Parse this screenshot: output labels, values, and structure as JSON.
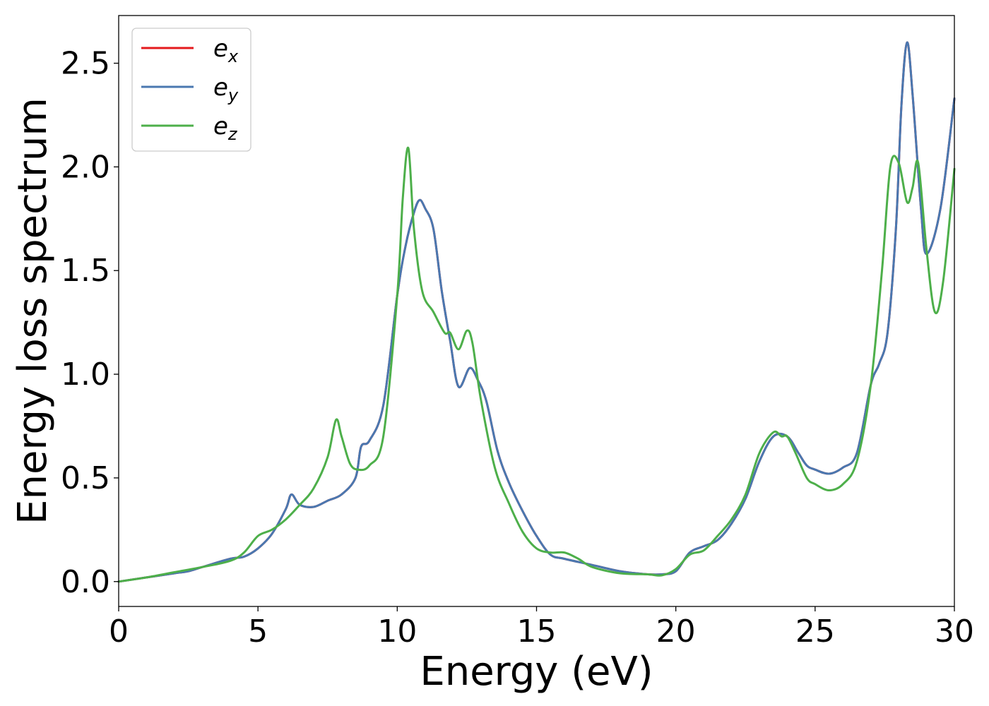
{
  "chart_data": {
    "type": "line",
    "title": "",
    "xlabel": "Energy (eV)",
    "ylabel": "Energy loss spectrum",
    "xlim": [
      0,
      30
    ],
    "ylim": [
      -0.12,
      2.73
    ],
    "xticks": [
      0,
      5,
      10,
      15,
      20,
      25,
      30
    ],
    "xtick_labels": [
      "0",
      "5",
      "10",
      "15",
      "20",
      "25",
      "30"
    ],
    "yticks": [
      0.0,
      0.5,
      1.0,
      1.5,
      2.0,
      2.5
    ],
    "ytick_labels": [
      "0.0",
      "0.5",
      "1.0",
      "1.5",
      "2.0",
      "2.5"
    ],
    "grid": false,
    "legend_position": "top-left",
    "series": [
      {
        "name": "e_x",
        "label_base": "e",
        "label_sub": "x",
        "color": "#e41a1c",
        "points": [
          [
            0,
            0
          ],
          [
            1,
            0.02
          ],
          [
            2,
            0.04
          ],
          [
            2.5,
            0.05
          ],
          [
            3,
            0.07
          ],
          [
            4,
            0.11
          ],
          [
            4.5,
            0.12
          ],
          [
            5,
            0.16
          ],
          [
            5.5,
            0.23
          ],
          [
            6,
            0.35
          ],
          [
            6.2,
            0.42
          ],
          [
            6.5,
            0.37
          ],
          [
            7,
            0.36
          ],
          [
            7.5,
            0.39
          ],
          [
            8,
            0.42
          ],
          [
            8.5,
            0.5
          ],
          [
            8.7,
            0.65
          ],
          [
            9,
            0.68
          ],
          [
            9.5,
            0.85
          ],
          [
            10,
            1.38
          ],
          [
            10.3,
            1.62
          ],
          [
            10.6,
            1.78
          ],
          [
            10.8,
            1.84
          ],
          [
            11,
            1.8
          ],
          [
            11.3,
            1.7
          ],
          [
            11.6,
            1.4
          ],
          [
            11.9,
            1.16
          ],
          [
            12.2,
            0.94
          ],
          [
            12.6,
            1.03
          ],
          [
            12.9,
            0.97
          ],
          [
            13.2,
            0.87
          ],
          [
            13.6,
            0.63
          ],
          [
            14,
            0.48
          ],
          [
            14.5,
            0.34
          ],
          [
            15,
            0.22
          ],
          [
            15.5,
            0.13
          ],
          [
            16,
            0.11
          ],
          [
            17,
            0.08
          ],
          [
            18,
            0.05
          ],
          [
            19,
            0.035
          ],
          [
            19.5,
            0.035
          ],
          [
            20,
            0.05
          ],
          [
            20.5,
            0.14
          ],
          [
            21,
            0.17
          ],
          [
            21.5,
            0.2
          ],
          [
            22,
            0.28
          ],
          [
            22.5,
            0.4
          ],
          [
            23,
            0.58
          ],
          [
            23.5,
            0.7
          ],
          [
            24,
            0.7
          ],
          [
            24.4,
            0.62
          ],
          [
            24.7,
            0.56
          ],
          [
            25,
            0.54
          ],
          [
            25.5,
            0.52
          ],
          [
            26,
            0.55
          ],
          [
            26.5,
            0.62
          ],
          [
            27,
            0.95
          ],
          [
            27.3,
            1.05
          ],
          [
            27.6,
            1.2
          ],
          [
            27.9,
            1.7
          ],
          [
            28.1,
            2.3
          ],
          [
            28.3,
            2.6
          ],
          [
            28.5,
            2.35
          ],
          [
            28.8,
            1.8
          ],
          [
            29,
            1.58
          ],
          [
            29.5,
            1.8
          ],
          [
            30,
            2.33
          ]
        ]
      },
      {
        "name": "e_y",
        "label_base": "e",
        "label_sub": "y",
        "color": "#4a78b0",
        "points": [
          [
            0,
            0
          ],
          [
            1,
            0.02
          ],
          [
            2,
            0.04
          ],
          [
            2.5,
            0.05
          ],
          [
            3,
            0.07
          ],
          [
            4,
            0.11
          ],
          [
            4.5,
            0.12
          ],
          [
            5,
            0.16
          ],
          [
            5.5,
            0.23
          ],
          [
            6,
            0.35
          ],
          [
            6.2,
            0.42
          ],
          [
            6.5,
            0.37
          ],
          [
            7,
            0.36
          ],
          [
            7.5,
            0.39
          ],
          [
            8,
            0.42
          ],
          [
            8.5,
            0.5
          ],
          [
            8.7,
            0.65
          ],
          [
            9,
            0.68
          ],
          [
            9.5,
            0.85
          ],
          [
            10,
            1.38
          ],
          [
            10.3,
            1.62
          ],
          [
            10.6,
            1.78
          ],
          [
            10.8,
            1.84
          ],
          [
            11,
            1.8
          ],
          [
            11.3,
            1.7
          ],
          [
            11.6,
            1.4
          ],
          [
            11.9,
            1.16
          ],
          [
            12.2,
            0.94
          ],
          [
            12.6,
            1.03
          ],
          [
            12.9,
            0.97
          ],
          [
            13.2,
            0.87
          ],
          [
            13.6,
            0.63
          ],
          [
            14,
            0.48
          ],
          [
            14.5,
            0.34
          ],
          [
            15,
            0.22
          ],
          [
            15.5,
            0.13
          ],
          [
            16,
            0.11
          ],
          [
            17,
            0.08
          ],
          [
            18,
            0.05
          ],
          [
            19,
            0.035
          ],
          [
            19.5,
            0.035
          ],
          [
            20,
            0.05
          ],
          [
            20.5,
            0.14
          ],
          [
            21,
            0.17
          ],
          [
            21.5,
            0.2
          ],
          [
            22,
            0.28
          ],
          [
            22.5,
            0.4
          ],
          [
            23,
            0.58
          ],
          [
            23.5,
            0.7
          ],
          [
            24,
            0.7
          ],
          [
            24.4,
            0.62
          ],
          [
            24.7,
            0.56
          ],
          [
            25,
            0.54
          ],
          [
            25.5,
            0.52
          ],
          [
            26,
            0.55
          ],
          [
            26.5,
            0.62
          ],
          [
            27,
            0.95
          ],
          [
            27.3,
            1.05
          ],
          [
            27.6,
            1.2
          ],
          [
            27.9,
            1.7
          ],
          [
            28.1,
            2.3
          ],
          [
            28.3,
            2.6
          ],
          [
            28.5,
            2.35
          ],
          [
            28.8,
            1.8
          ],
          [
            29,
            1.58
          ],
          [
            29.5,
            1.8
          ],
          [
            30,
            2.33
          ]
        ]
      },
      {
        "name": "e_z",
        "label_base": "e",
        "label_sub": "z",
        "color": "#4daf4a",
        "points": [
          [
            0,
            0
          ],
          [
            1,
            0.02
          ],
          [
            2,
            0.045
          ],
          [
            3,
            0.07
          ],
          [
            4,
            0.1
          ],
          [
            4.5,
            0.14
          ],
          [
            5,
            0.22
          ],
          [
            5.5,
            0.25
          ],
          [
            6,
            0.3
          ],
          [
            6.5,
            0.37
          ],
          [
            7,
            0.45
          ],
          [
            7.5,
            0.6
          ],
          [
            7.8,
            0.78
          ],
          [
            8,
            0.7
          ],
          [
            8.3,
            0.57
          ],
          [
            8.6,
            0.54
          ],
          [
            9,
            0.56
          ],
          [
            9.5,
            0.7
          ],
          [
            10,
            1.38
          ],
          [
            10.2,
            1.85
          ],
          [
            10.4,
            2.09
          ],
          [
            10.6,
            1.7
          ],
          [
            10.9,
            1.4
          ],
          [
            11.3,
            1.3
          ],
          [
            11.7,
            1.2
          ],
          [
            11.9,
            1.2
          ],
          [
            12.2,
            1.12
          ],
          [
            12.5,
            1.21
          ],
          [
            12.7,
            1.15
          ],
          [
            13,
            0.88
          ],
          [
            13.5,
            0.55
          ],
          [
            14,
            0.38
          ],
          [
            14.5,
            0.24
          ],
          [
            15,
            0.16
          ],
          [
            15.5,
            0.14
          ],
          [
            16,
            0.14
          ],
          [
            16.5,
            0.11
          ],
          [
            17,
            0.07
          ],
          [
            18,
            0.04
          ],
          [
            19,
            0.035
          ],
          [
            19.5,
            0.03
          ],
          [
            20,
            0.06
          ],
          [
            20.5,
            0.13
          ],
          [
            21,
            0.15
          ],
          [
            21.5,
            0.22
          ],
          [
            22,
            0.3
          ],
          [
            22.5,
            0.42
          ],
          [
            23,
            0.62
          ],
          [
            23.5,
            0.72
          ],
          [
            23.8,
            0.7
          ],
          [
            24,
            0.7
          ],
          [
            24.3,
            0.62
          ],
          [
            24.7,
            0.5
          ],
          [
            25,
            0.47
          ],
          [
            25.5,
            0.44
          ],
          [
            26,
            0.47
          ],
          [
            26.5,
            0.58
          ],
          [
            27,
            0.95
          ],
          [
            27.4,
            1.5
          ],
          [
            27.7,
            2.0
          ],
          [
            28,
            2.02
          ],
          [
            28.3,
            1.83
          ],
          [
            28.5,
            1.9
          ],
          [
            28.7,
            2.02
          ],
          [
            29,
            1.6
          ],
          [
            29.3,
            1.3
          ],
          [
            29.6,
            1.45
          ],
          [
            30,
            1.99
          ]
        ]
      }
    ]
  }
}
